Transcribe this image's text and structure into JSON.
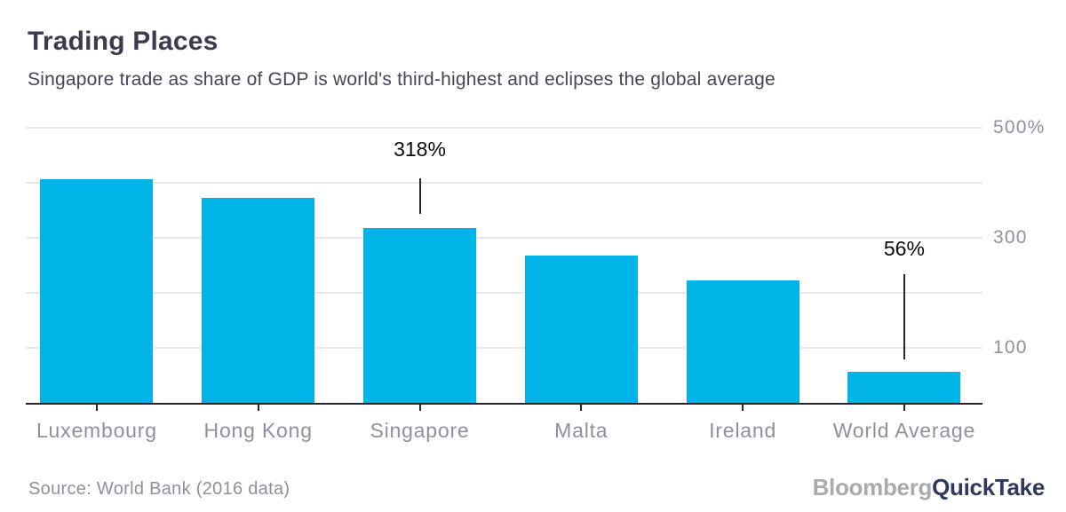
{
  "header": {
    "title": "Trading Places",
    "subtitle": "Singapore trade as share of GDP is world's third-highest and eclipses the global average"
  },
  "chart_data": {
    "type": "bar",
    "title": "Trading Places",
    "subtitle": "Singapore trade as share of GDP is world's third-highest and eclipses the global average",
    "categories": [
      "Luxembourg",
      "Hong Kong",
      "Singapore",
      "Malta",
      "Ireland",
      "World Average"
    ],
    "values": [
      407,
      373,
      318,
      268,
      222,
      56
    ],
    "unit": "percent of GDP",
    "ylim": [
      0,
      500
    ],
    "y_axis_side": "right",
    "grid": true,
    "y_ticks": [
      {
        "value": 100,
        "label": "100"
      },
      {
        "value": 200,
        "label": ""
      },
      {
        "value": 300,
        "label": "300"
      },
      {
        "value": 400,
        "label": ""
      },
      {
        "value": 500,
        "label": "500%"
      }
    ],
    "annotations": [
      {
        "category_index": 2,
        "text": "318%",
        "label_y": 155,
        "line_y1": 201,
        "line_y2": 241
      },
      {
        "category_index": 5,
        "text": "56%",
        "label_y": 267,
        "line_y1": 309,
        "line_y2": 405
      }
    ]
  },
  "footer": {
    "source": "Source: World Bank (2016 data)",
    "brand": {
      "part1": "Bloomberg",
      "part2": "QuickTake"
    }
  },
  "colors": {
    "bar": "#00b4e8",
    "title_text": "#3c3c4e",
    "axis_text": "#8f8fa0",
    "gridline": "#e8e8ec",
    "axis_line": "#26262e",
    "annotation_text": "#0a0a0a",
    "brand_bloomberg": "#a8aaad",
    "brand_quicktake": "#2d3a5e"
  }
}
